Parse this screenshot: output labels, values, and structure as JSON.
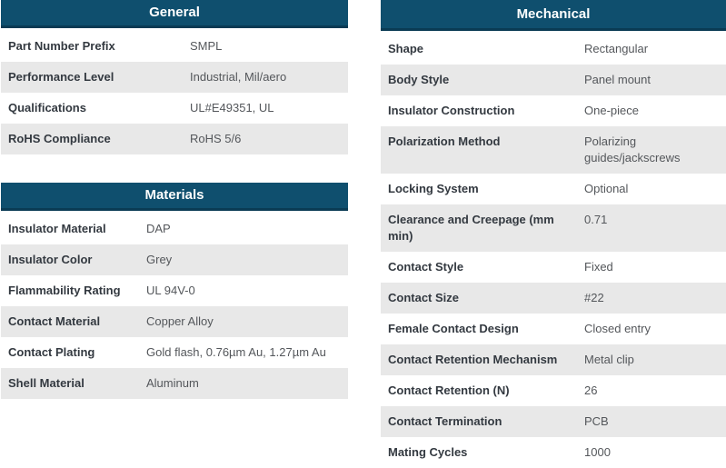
{
  "palette": {
    "header_bg": "#0f4f6e",
    "header_border": "#0a3b54",
    "header_text": "#ffffff",
    "row_stripe_bg": "#e8e8e8",
    "row_bg": "#ffffff",
    "label_text": "#333940",
    "value_text": "#54575b"
  },
  "tables": {
    "general": {
      "title": "General",
      "rows": [
        {
          "label": "Part Number Prefix",
          "value": "SMPL"
        },
        {
          "label": "Performance Level",
          "value": "Industrial, Mil/aero"
        },
        {
          "label": "Qualifications",
          "value": "UL#E49351, UL"
        },
        {
          "label": "RoHS Compliance",
          "value": "RoHS 5/6"
        }
      ]
    },
    "materials": {
      "title": "Materials",
      "rows": [
        {
          "label": "Insulator Material",
          "value": "DAP"
        },
        {
          "label": "Insulator Color",
          "value": "Grey"
        },
        {
          "label": "Flammability Rating",
          "value": "UL 94V-0"
        },
        {
          "label": "Contact Material",
          "value": "Copper Alloy"
        },
        {
          "label": "Contact Plating",
          "value": "Gold flash, 0.76µm Au, 1.27µm Au"
        },
        {
          "label": "Shell Material",
          "value": "Aluminum"
        }
      ]
    },
    "mechanical": {
      "title": "Mechanical",
      "rows": [
        {
          "label": "Shape",
          "value": "Rectangular"
        },
        {
          "label": "Body Style",
          "value": "Panel mount"
        },
        {
          "label": "Insulator Construction",
          "value": "One-piece"
        },
        {
          "label": "Polarization Method",
          "value": "Polarizing guides/jackscrews"
        },
        {
          "label": "Locking System",
          "value": "Optional"
        },
        {
          "label": "Clearance and Creepage (mm min)",
          "value": "0.71"
        },
        {
          "label": "Contact Style",
          "value": "Fixed"
        },
        {
          "label": "Contact Size",
          "value": "#22"
        },
        {
          "label": "Female Contact Design",
          "value": "Closed entry"
        },
        {
          "label": "Contact Retention Mechanism",
          "value": "Metal clip"
        },
        {
          "label": "Contact Retention (N)",
          "value": "26"
        },
        {
          "label": "Contact Termination",
          "value": "PCB"
        },
        {
          "label": "Mating Cycles",
          "value": "1000"
        }
      ]
    }
  }
}
